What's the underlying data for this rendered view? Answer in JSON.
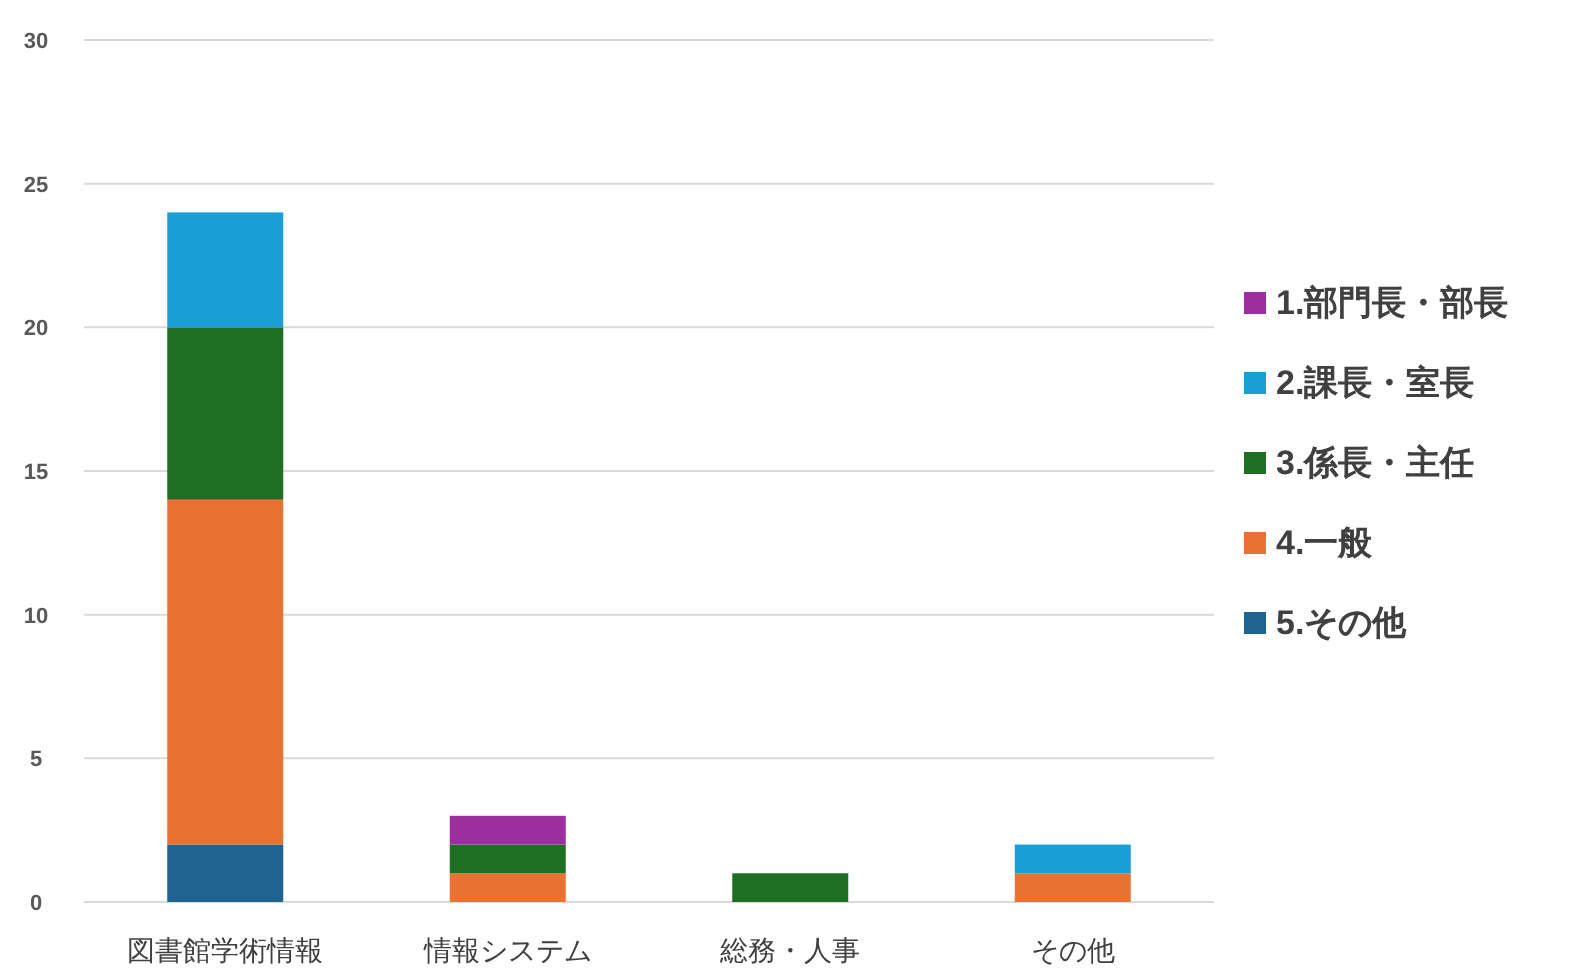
{
  "chart_data": {
    "type": "bar",
    "stacked": true,
    "categories": [
      "図書館学術情報",
      "情報システム",
      "総務・人事",
      "その他"
    ],
    "series": [
      {
        "name": "5.その他",
        "color": "#1f6390",
        "values": [
          2,
          0,
          0,
          0
        ]
      },
      {
        "name": "4.一般",
        "color": "#e97132",
        "values": [
          12,
          1,
          0,
          1
        ]
      },
      {
        "name": "3.係長・主任",
        "color": "#1e6e23",
        "values": [
          6,
          1,
          1,
          0
        ]
      },
      {
        "name": "2.課長・室長",
        "color": "#1a9ed8",
        "values": [
          4,
          0,
          0,
          1
        ]
      },
      {
        "name": "1.部門長・部長",
        "color": "#9b2fa0",
        "values": [
          0,
          1,
          0,
          0
        ]
      }
    ],
    "ylim": [
      0,
      30
    ],
    "yticks": [
      0,
      5,
      10,
      15,
      20,
      25,
      30
    ],
    "grid": "y",
    "legend": "right"
  }
}
